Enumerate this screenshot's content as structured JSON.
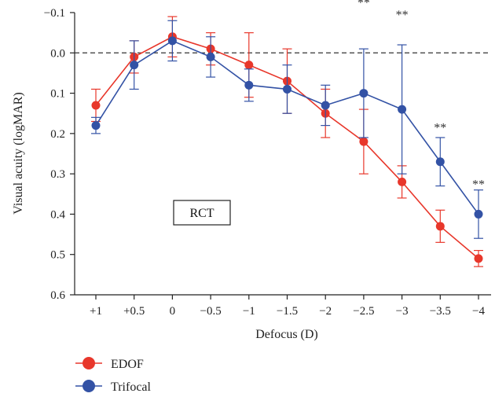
{
  "chart_data": {
    "type": "line",
    "xlabel": "Defocus (D)",
    "ylabel": "Visual acuity (logMAR)",
    "categories": [
      "+1",
      "+0.5",
      "0",
      "−0.5",
      "−1",
      "−1.5",
      "−2",
      "−2.5",
      "−3",
      "−3.5",
      "−4"
    ],
    "ylim": [
      -0.1,
      0.6
    ],
    "y_inverted": true,
    "yticks": [
      -0.1,
      0.0,
      0.1,
      0.2,
      0.3,
      0.4,
      0.5,
      0.6
    ],
    "ytick_labels": [
      "−0.1",
      "0.0",
      "0.1",
      "0.2",
      "0.3",
      "0.4",
      "0.5",
      "0.6"
    ],
    "reference_line": 0.0,
    "annotation_box": "RCT",
    "legend_position": "bottom-left",
    "series": [
      {
        "name": "EDOF",
        "color": "#e8372b",
        "values": [
          0.13,
          0.01,
          -0.04,
          -0.01,
          0.03,
          0.07,
          0.15,
          0.22,
          0.32,
          0.43,
          0.51
        ],
        "err": [
          0.04,
          0.04,
          0.05,
          0.04,
          0.08,
          0.08,
          0.06,
          0.08,
          0.04,
          0.04,
          0.02
        ]
      },
      {
        "name": "Trifocal",
        "color": "#3352a5",
        "values": [
          0.18,
          0.03,
          -0.03,
          0.01,
          0.08,
          0.09,
          0.13,
          0.1,
          0.14,
          0.27,
          0.4
        ],
        "err": [
          0.02,
          0.06,
          0.05,
          0.05,
          0.04,
          0.06,
          0.05,
          0.11,
          0.16,
          0.06,
          0.06
        ]
      }
    ],
    "significance": [
      {
        "category": "−2.5",
        "label": "**",
        "y": -0.13
      },
      {
        "category": "−3",
        "label": "**",
        "y": -0.1
      },
      {
        "category": "−3.5",
        "label": "**",
        "y": 0.18
      },
      {
        "category": "−4",
        "label": "**",
        "y": 0.32
      }
    ]
  }
}
